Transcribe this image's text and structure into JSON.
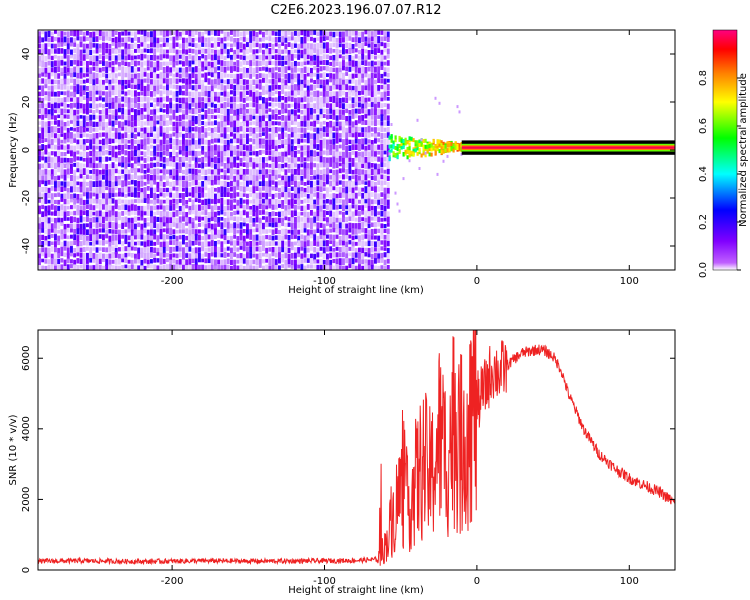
{
  "title": "C2E6.2023.196.07.07.R12",
  "chart_data": [
    {
      "type": "heatmap",
      "title": "C2E6.2023.196.07.07.R12",
      "xlabel": "Height of straight line (km)",
      "ylabel": "Frequency (Hz)",
      "xlim": [
        -288,
        130
      ],
      "ylim": [
        -50,
        50
      ],
      "xticks": [
        -200,
        -100,
        0,
        100
      ],
      "xtick_labels": [
        "-200",
        "-100",
        "0",
        "100"
      ],
      "yticks": [
        -40,
        -20,
        0,
        20,
        40
      ],
      "ytick_labels": [
        "-40",
        "-20",
        "0",
        "20",
        "40"
      ],
      "colorbar": {
        "label": "Normalized spectral amplitude",
        "range": [
          0,
          1
        ],
        "ticks": [
          0.0,
          0.2,
          0.4,
          0.6,
          0.8
        ],
        "tick_labels": [
          "0.0",
          "0.2",
          "0.4",
          "0.6",
          "0.8"
        ],
        "colormap": [
          "#ffffff",
          "#8000ff",
          "#0000ff",
          "#00ffff",
          "#00ff00",
          "#ffff00",
          "#ff8000",
          "#ff0000",
          "#ff0080"
        ]
      },
      "regions": [
        {
          "x_range": [
            -288,
            -58
          ],
          "freq_range": [
            -50,
            50
          ],
          "amplitude": 0.12
        },
        {
          "x_range": [
            -58,
            -10
          ],
          "freq_range": [
            -4,
            5
          ],
          "amplitude": 0.5
        },
        {
          "x_range": [
            -10,
            130
          ],
          "freq_range": [
            -1,
            3
          ],
          "amplitude": 0.95
        }
      ],
      "line_center_hz": 1
    },
    {
      "type": "line",
      "xlabel": "Height of straight line (km)",
      "ylabel": "SNR (10 * v/v)",
      "xlim": [
        -288,
        130
      ],
      "ylim": [
        0,
        6800
      ],
      "xticks": [
        -200,
        -100,
        0,
        100
      ],
      "xtick_labels": [
        "-200",
        "-100",
        "0",
        "100"
      ],
      "yticks": [
        0,
        2000,
        4000,
        6000
      ],
      "ytick_labels": [
        "0",
        "2000",
        "4000",
        "6000"
      ],
      "color": "#ee2222",
      "series": [
        {
          "x": [
            -288,
            -260,
            -220,
            -180,
            -140,
            -100,
            -80,
            -65,
            -60,
            -55,
            -50,
            -45,
            -40,
            -35,
            -30,
            -25,
            -20,
            -15,
            -10,
            -5,
            0,
            5,
            10,
            15,
            20,
            25,
            30,
            35,
            40,
            45,
            50,
            55,
            60,
            70,
            80,
            90,
            100,
            110,
            120,
            130
          ],
          "values": [
            250,
            260,
            240,
            260,
            250,
            260,
            270,
            300,
            700,
            1500,
            2300,
            1800,
            2500,
            3000,
            2600,
            3800,
            3200,
            4200,
            3500,
            4500,
            4700,
            5100,
            5700,
            5600,
            5800,
            6000,
            6150,
            6200,
            6250,
            6200,
            6050,
            5700,
            5000,
            4000,
            3300,
            2900,
            2600,
            2400,
            2200,
            1900
          ]
        }
      ]
    }
  ]
}
